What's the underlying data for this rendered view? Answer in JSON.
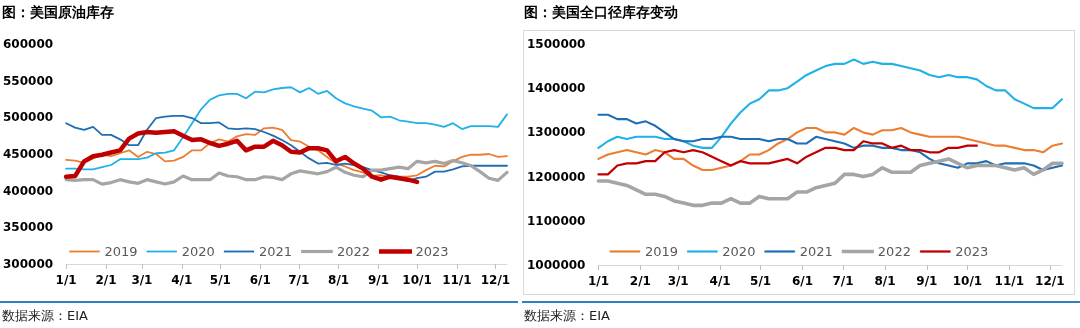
{
  "chart_data": [
    {
      "type": "line",
      "title": "图：美国原油库存",
      "annotations": [
        "数据来源：EIA"
      ],
      "x": [
        "--01-01",
        "--01-08",
        "--01-15",
        "--01-22",
        "--01-29",
        "--02-05",
        "--02-12",
        "--02-19",
        "--02-26",
        "--03-05",
        "--03-12",
        "--03-19",
        "--03-26",
        "--04-02",
        "--04-09",
        "--04-16",
        "--04-23",
        "--04-30",
        "--05-07",
        "--05-14",
        "--05-21",
        "--05-28",
        "--06-04",
        "--06-11",
        "--06-18",
        "--06-25",
        "--07-02",
        "--07-09",
        "--07-16",
        "--07-23",
        "--07-30",
        "--08-06",
        "--08-13",
        "--08-20",
        "--08-27",
        "--09-03",
        "--09-10",
        "--09-17",
        "--09-24",
        "--10-01",
        "--10-08",
        "--10-15",
        "--10-22",
        "--10-29",
        "--11-05",
        "--11-12",
        "--11-19",
        "--11-26",
        "--12-03",
        "--12-10"
      ],
      "xlim": [
        "--01-01",
        "--12-10"
      ],
      "xticks": [
        {
          "value": "--01-01",
          "label": "1/1"
        },
        {
          "value": "--02-01",
          "label": "2/1"
        },
        {
          "value": "--03-01",
          "label": "3/1"
        },
        {
          "value": "--04-01",
          "label": "4/1"
        },
        {
          "value": "--05-01",
          "label": "5/1"
        },
        {
          "value": "--06-01",
          "label": "6/1"
        },
        {
          "value": "--07-01",
          "label": "7/1"
        },
        {
          "value": "--08-01",
          "label": "8/1"
        },
        {
          "value": "--09-01",
          "label": "9/1"
        },
        {
          "value": "--10-01",
          "label": "10/1"
        },
        {
          "value": "--11-01",
          "label": "11/1"
        },
        {
          "value": "--12-01",
          "label": "12/1"
        }
      ],
      "ylim": [
        300000,
        600000
      ],
      "yticks": [
        300000,
        350000,
        400000,
        450000,
        500000,
        550000,
        600000
      ],
      "series": [
        {
          "name": "2019",
          "color": "#ed7d31",
          "values": [
            442000,
            441000,
            438000,
            444000,
            449000,
            447000,
            451000,
            455000,
            446000,
            453000,
            450000,
            440000,
            441000,
            446000,
            455000,
            455000,
            465000,
            470000,
            467000,
            474000,
            477000,
            476000,
            485000,
            486000,
            483000,
            469000,
            467000,
            460000,
            455000,
            446000,
            437000,
            433000,
            428000,
            425000,
            420000,
            421000,
            419000,
            419000,
            419000,
            421000,
            428000,
            434000,
            433000,
            440000,
            446000,
            449000,
            449000,
            450000,
            446000,
            447000
          ]
        },
        {
          "name": "2020",
          "color": "#21b1e6",
          "values": [
            430000,
            430000,
            429000,
            429000,
            432000,
            435000,
            443000,
            443000,
            443000,
            445000,
            451000,
            452000,
            455000,
            473000,
            492000,
            511000,
            524000,
            530000,
            532000,
            532000,
            526000,
            535000,
            534000,
            538000,
            540000,
            541000,
            534000,
            540000,
            532000,
            536000,
            526000,
            519000,
            515000,
            512000,
            509000,
            500000,
            501000,
            496000,
            494000,
            492000,
            492000,
            490000,
            487000,
            492000,
            484000,
            488000,
            488000,
            488000,
            487000,
            504000
          ]
        },
        {
          "name": "2021",
          "color": "#1f6db3",
          "values": [
            492000,
            486000,
            483000,
            487000,
            476000,
            476000,
            470000,
            462000,
            462000,
            483000,
            499000,
            501000,
            502000,
            502000,
            499000,
            492000,
            492000,
            493000,
            485000,
            484000,
            485000,
            484000,
            480000,
            475000,
            469000,
            462000,
            453000,
            444000,
            437000,
            438000,
            435000,
            437000,
            435000,
            432000,
            428000,
            425000,
            421000,
            419000,
            413000,
            417000,
            419000,
            426000,
            426000,
            429000,
            433000,
            434000,
            434000,
            434000,
            434000,
            434000
          ]
        },
        {
          "name": "2022",
          "color": "#a5a5a5",
          "values": [
            415000,
            414000,
            415000,
            415000,
            409000,
            411000,
            415000,
            412000,
            410000,
            415000,
            412000,
            409000,
            412000,
            420000,
            415000,
            415000,
            415000,
            424000,
            420000,
            419000,
            415000,
            415000,
            419000,
            418000,
            415000,
            423000,
            427000,
            425000,
            423000,
            426000,
            432000,
            425000,
            421000,
            419000,
            428000,
            428000,
            430000,
            432000,
            430000,
            440000,
            438000,
            440000,
            437000,
            441000,
            438000,
            434000,
            426000,
            417000,
            414000,
            425000
          ]
        },
        {
          "name": "2023",
          "color": "#c00000",
          "values": [
            419000,
            420000,
            440000,
            447000,
            449000,
            452000,
            455000,
            471000,
            478000,
            480000,
            479000,
            480000,
            481000,
            475000,
            469000,
            470000,
            465000,
            461000,
            464000,
            468000,
            455000,
            460000,
            460000,
            468000,
            462000,
            453000,
            452000,
            458000,
            458000,
            455000,
            440000,
            446000,
            437000,
            430000,
            419000,
            415000,
            419000,
            417000,
            415000,
            412000,
            null,
            null,
            null,
            null,
            null,
            null,
            null,
            null,
            null,
            null
          ]
        }
      ],
      "legend": "bottom",
      "grid": false,
      "marker": "none",
      "line_style": "solid"
    },
    {
      "type": "line",
      "title": "图：美国全口径库存变动",
      "annotations": [
        "数据来源：EIA"
      ],
      "x": [
        "--01-01",
        "--01-08",
        "--01-15",
        "--01-22",
        "--01-29",
        "--02-05",
        "--02-12",
        "--02-19",
        "--02-26",
        "--03-05",
        "--03-12",
        "--03-19",
        "--03-26",
        "--04-02",
        "--04-09",
        "--04-16",
        "--04-23",
        "--04-30",
        "--05-07",
        "--05-14",
        "--05-21",
        "--05-28",
        "--06-04",
        "--06-11",
        "--06-18",
        "--06-25",
        "--07-02",
        "--07-09",
        "--07-16",
        "--07-23",
        "--07-30",
        "--08-06",
        "--08-13",
        "--08-20",
        "--08-27",
        "--09-03",
        "--09-10",
        "--09-17",
        "--09-24",
        "--10-01",
        "--10-08",
        "--10-15",
        "--10-22",
        "--10-29",
        "--11-05",
        "--11-12",
        "--11-19",
        "--11-26",
        "--12-03",
        "--12-10"
      ],
      "xlim": [
        "--01-01",
        "--12-10"
      ],
      "xticks": [
        {
          "value": "--01-01",
          "label": "1/1"
        },
        {
          "value": "--02-01",
          "label": "2/1"
        },
        {
          "value": "--03-01",
          "label": "3/1"
        },
        {
          "value": "--04-01",
          "label": "4/1"
        },
        {
          "value": "--05-01",
          "label": "5/1"
        },
        {
          "value": "--06-01",
          "label": "6/1"
        },
        {
          "value": "--07-01",
          "label": "7/1"
        },
        {
          "value": "--08-01",
          "label": "8/1"
        },
        {
          "value": "--09-01",
          "label": "9/1"
        },
        {
          "value": "--10-01",
          "label": "10/1"
        },
        {
          "value": "--11-01",
          "label": "11/1"
        },
        {
          "value": "--12-01",
          "label": "12/1"
        }
      ],
      "ylim": [
        1000000,
        1500000
      ],
      "yticks": [
        1000000,
        1100000,
        1200000,
        1300000,
        1400000,
        1500000
      ],
      "series": [
        {
          "name": "2019",
          "color": "#ed7d31",
          "values": [
            1240000,
            1250000,
            1255000,
            1260000,
            1255000,
            1250000,
            1260000,
            1255000,
            1240000,
            1240000,
            1225000,
            1215000,
            1215000,
            1220000,
            1225000,
            1235000,
            1250000,
            1250000,
            1260000,
            1275000,
            1285000,
            1300000,
            1310000,
            1310000,
            1300000,
            1300000,
            1295000,
            1310000,
            1300000,
            1295000,
            1305000,
            1305000,
            1310000,
            1300000,
            1295000,
            1290000,
            1290000,
            1290000,
            1290000,
            1285000,
            1280000,
            1275000,
            1270000,
            1270000,
            1265000,
            1260000,
            1260000,
            1255000,
            1270000,
            1275000
          ]
        },
        {
          "name": "2020",
          "color": "#21b1e6",
          "values": [
            1265000,
            1280000,
            1290000,
            1285000,
            1290000,
            1290000,
            1290000,
            1285000,
            1285000,
            1280000,
            1270000,
            1265000,
            1265000,
            1290000,
            1320000,
            1345000,
            1365000,
            1375000,
            1395000,
            1395000,
            1400000,
            1415000,
            1430000,
            1440000,
            1450000,
            1455000,
            1455000,
            1465000,
            1455000,
            1460000,
            1455000,
            1455000,
            1450000,
            1445000,
            1440000,
            1430000,
            1425000,
            1430000,
            1425000,
            1425000,
            1420000,
            1405000,
            1395000,
            1395000,
            1375000,
            1365000,
            1355000,
            1355000,
            1355000,
            1375000
          ]
        },
        {
          "name": "2021",
          "color": "#1f6db3",
          "values": [
            1340000,
            1340000,
            1330000,
            1330000,
            1320000,
            1325000,
            1315000,
            1300000,
            1285000,
            1280000,
            1280000,
            1285000,
            1285000,
            1290000,
            1290000,
            1285000,
            1285000,
            1285000,
            1280000,
            1285000,
            1285000,
            1275000,
            1275000,
            1290000,
            1285000,
            1280000,
            1275000,
            1265000,
            1270000,
            1270000,
            1265000,
            1265000,
            1260000,
            1260000,
            1255000,
            1240000,
            1230000,
            1225000,
            1220000,
            1230000,
            1230000,
            1235000,
            1225000,
            1230000,
            1230000,
            1230000,
            1225000,
            1215000,
            1220000,
            1225000
          ]
        },
        {
          "name": "2022",
          "color": "#a5a5a5",
          "values": [
            1190000,
            1190000,
            1185000,
            1180000,
            1170000,
            1160000,
            1160000,
            1155000,
            1145000,
            1140000,
            1135000,
            1135000,
            1140000,
            1140000,
            1150000,
            1140000,
            1140000,
            1155000,
            1150000,
            1150000,
            1150000,
            1165000,
            1165000,
            1175000,
            1180000,
            1185000,
            1205000,
            1205000,
            1200000,
            1205000,
            1220000,
            1210000,
            1210000,
            1210000,
            1225000,
            1230000,
            1235000,
            1240000,
            1230000,
            1220000,
            1225000,
            1225000,
            1225000,
            1220000,
            1215000,
            1220000,
            1205000,
            1215000,
            1230000,
            1230000
          ]
        },
        {
          "name": "2023",
          "color": "#c00000",
          "values": [
            1205000,
            1205000,
            1225000,
            1230000,
            1230000,
            1235000,
            1235000,
            1255000,
            1260000,
            1255000,
            1260000,
            1255000,
            1245000,
            1235000,
            1225000,
            1235000,
            1230000,
            1230000,
            1230000,
            1235000,
            1240000,
            1230000,
            1245000,
            1255000,
            1265000,
            1265000,
            1260000,
            1260000,
            1280000,
            1275000,
            1275000,
            1265000,
            1270000,
            1260000,
            1260000,
            1255000,
            1255000,
            1265000,
            1265000,
            1270000,
            1270000,
            null,
            null,
            null,
            null,
            null,
            null,
            null,
            null,
            null
          ]
        }
      ],
      "legend": "bottom",
      "grid": false,
      "marker": "none",
      "line_style": "solid"
    }
  ]
}
